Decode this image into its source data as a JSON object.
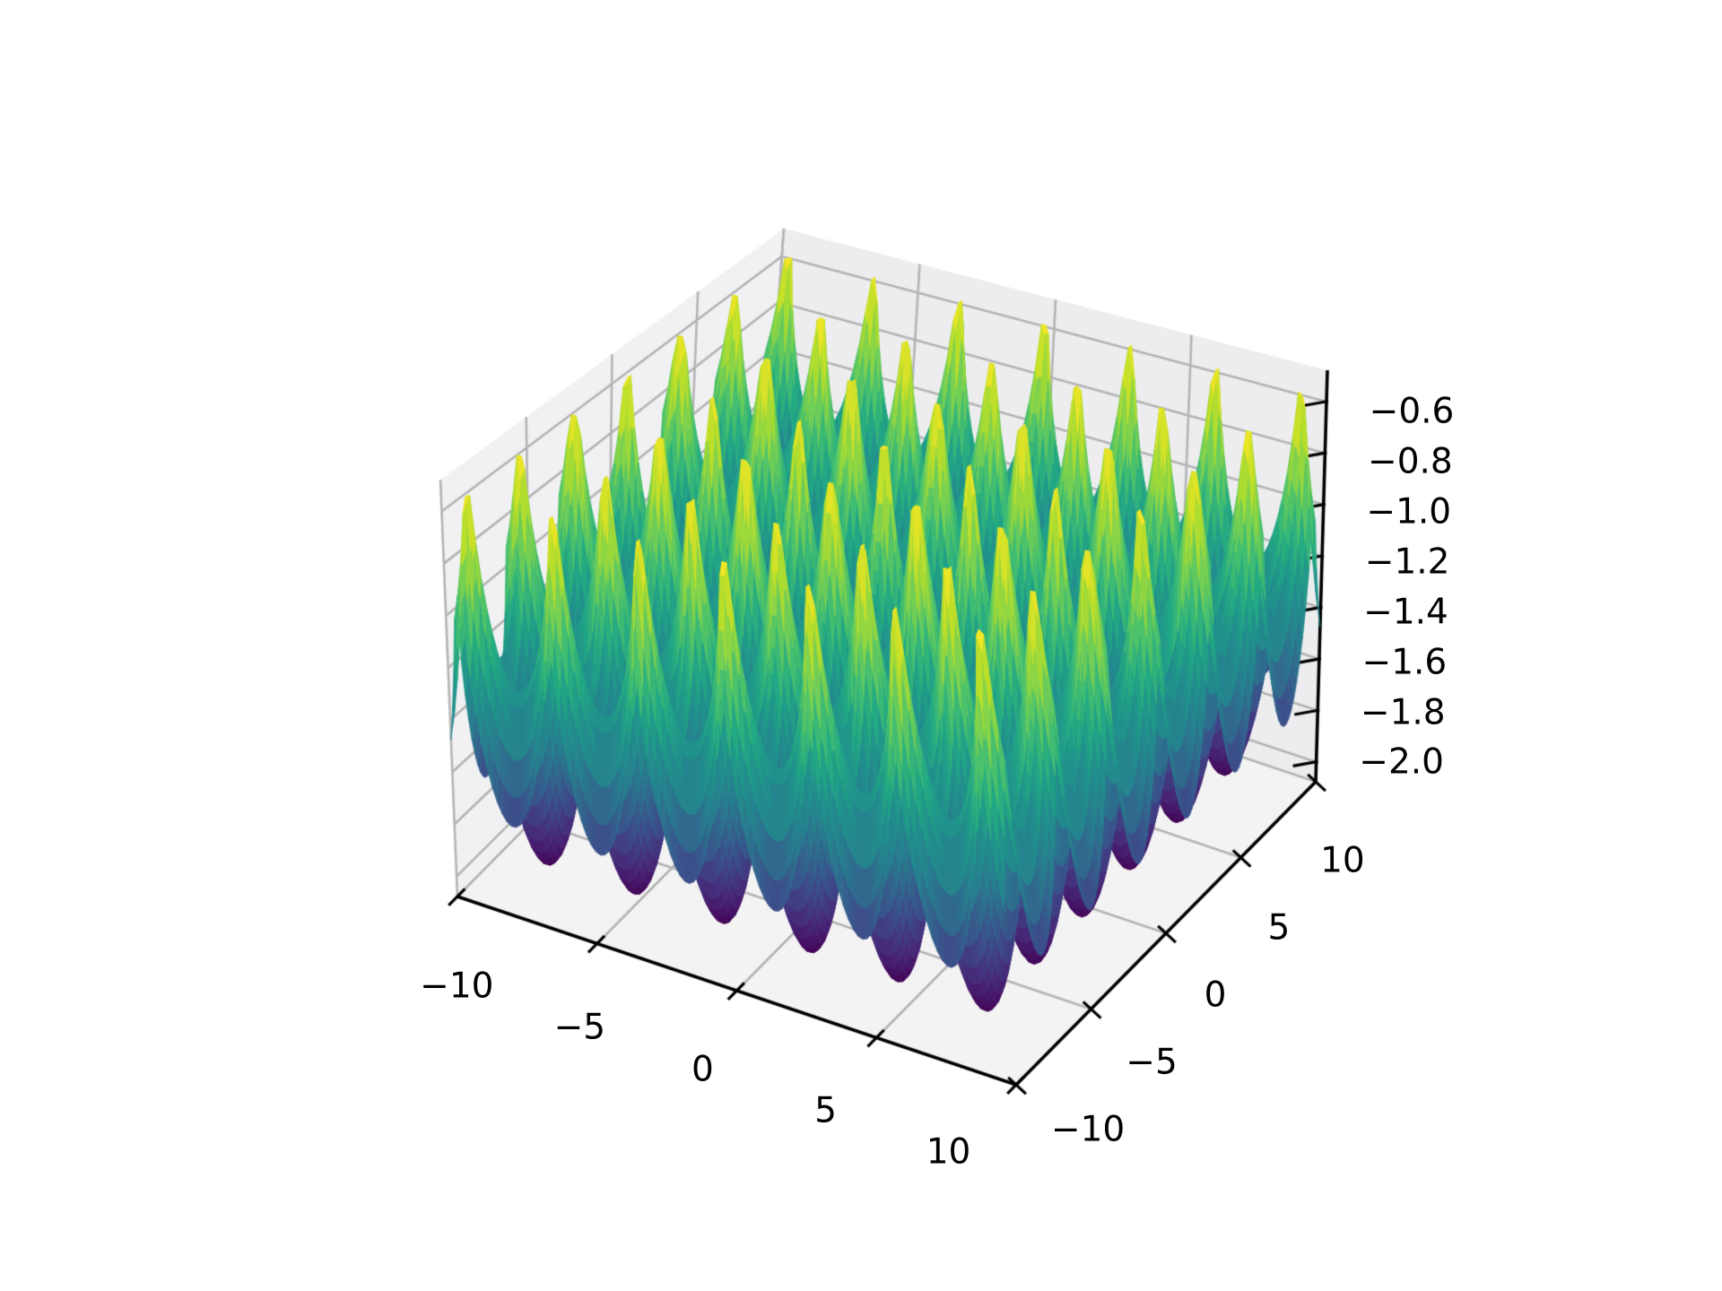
{
  "figure": {
    "background": "#ffffff",
    "kind": "matplotlib-3d-axes"
  },
  "chart_data": {
    "type": "surface3d",
    "title": "",
    "function": "z = -(sqrt(|sin x|) + sqrt(|sin y|))",
    "x_range": [
      -10,
      10
    ],
    "y_range": [
      -10,
      10
    ],
    "z_data_range": [
      -2.0,
      -0.55
    ],
    "grid_resolution": 126,
    "colormap": "viridis",
    "grid": true,
    "legend": false,
    "view": {
      "elev_deg": 30,
      "azim_deg": -60,
      "projection": "perspective"
    },
    "axes": {
      "x": {
        "label": "",
        "ticks": [
          -10,
          -5,
          0,
          5,
          10
        ],
        "tick_labels": [
          "−10",
          "−5",
          "0",
          "5",
          "10"
        ]
      },
      "y": {
        "label": "",
        "ticks": [
          -10,
          -5,
          0,
          5,
          10
        ],
        "tick_labels": [
          "−10",
          "−5",
          "0",
          "5",
          "10"
        ]
      },
      "z": {
        "label": "",
        "ticks": [
          -0.6,
          -0.8,
          -1.0,
          -1.2,
          -1.4,
          -1.6,
          -1.8,
          -2.0
        ],
        "tick_labels": [
          "−0.6",
          "−0.8",
          "−1.0",
          "−1.2",
          "−1.4",
          "−1.6",
          "−1.8",
          "−2.0"
        ],
        "lim": [
          -2.077,
          -0.478
        ]
      }
    },
    "colors": {
      "surface_peak": "#fde725",
      "surface_mid": "#35b779",
      "surface_low": "#31688e",
      "surface_min": "#440154",
      "pane_left": "#f1f1f3",
      "pane_right": "#ededef",
      "pane_floor": "#f3f3f3",
      "grid_line": "#b4b4b4",
      "spine": "#000000",
      "tick_text": "#000000"
    }
  }
}
